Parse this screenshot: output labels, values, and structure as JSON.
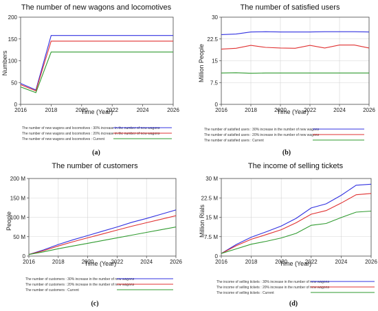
{
  "chart_data": [
    {
      "type": "line",
      "panel_label": "(a)",
      "title": "The number of new wagons and locomotives",
      "xlabel": "Time  (Year)",
      "ylabel": "Numbers",
      "xlim": [
        2016,
        2026
      ],
      "ylim": [
        0,
        200
      ],
      "xticks": [
        2016,
        2018,
        2020,
        2022,
        2024,
        2026
      ],
      "yticks": [
        "0",
        "50",
        "100",
        "150",
        "200"
      ],
      "ytick_values": [
        0,
        50,
        100,
        150,
        200
      ],
      "grid": false,
      "legend_position": "below",
      "x": [
        2016,
        2017,
        2018,
        2019,
        2020,
        2021,
        2022,
        2023,
        2024,
        2025,
        2026
      ],
      "series": [
        {
          "name": "The number of new wagons and locomotives : 30% increase in the number of new wagons",
          "color": "#3030e0",
          "values": [
            48,
            33,
            158,
            158,
            158,
            158,
            158,
            158,
            158,
            158,
            158
          ]
        },
        {
          "name": "The number of new wagons and locomotives : 20% increase in the number of new wagons",
          "color": "#e03030",
          "values": [
            45,
            31,
            145,
            145,
            145,
            145,
            145,
            145,
            145,
            145,
            145
          ]
        },
        {
          "name": "The number of new wagons and locomotives : Current",
          "color": "#2e9a2e",
          "values": [
            40,
            27,
            120,
            120,
            120,
            120,
            120,
            120,
            120,
            120,
            120
          ]
        }
      ]
    },
    {
      "type": "line",
      "panel_label": "(b)",
      "title": "The number of satisfied users",
      "xlabel": "Time  (Year)",
      "ylabel": "Million People",
      "xlim": [
        2016,
        2026
      ],
      "ylim": [
        0,
        30
      ],
      "xticks": [
        2016,
        2018,
        2020,
        2022,
        2024,
        2026
      ],
      "yticks": [
        "0",
        "7.5",
        "15",
        "22.5",
        "30"
      ],
      "ytick_values": [
        0,
        7.5,
        15,
        22.5,
        30
      ],
      "grid": true,
      "legend_position": "below",
      "x": [
        2016,
        2017,
        2018,
        2019,
        2020,
        2021,
        2022,
        2023,
        2024,
        2025,
        2026
      ],
      "series": [
        {
          "name": "The number of satisfied users : 30% increase in the number of new wagons",
          "color": "#3030e0",
          "values": [
            24.0,
            24.2,
            24.9,
            25.0,
            24.9,
            24.9,
            24.9,
            25.0,
            25.0,
            25.0,
            24.9
          ]
        },
        {
          "name": "The number of satisfied users : 20% increase in the number of new wagons",
          "color": "#e03030",
          "values": [
            19.0,
            19.3,
            20.3,
            19.6,
            19.4,
            19.3,
            20.3,
            19.4,
            20.4,
            20.4,
            19.4
          ]
        },
        {
          "name": "The number of satisfied users : Current",
          "color": "#2e9a2e",
          "values": [
            10.8,
            10.9,
            10.7,
            10.8,
            10.8,
            10.8,
            10.8,
            10.8,
            10.8,
            10.8,
            10.8
          ]
        }
      ]
    },
    {
      "type": "line",
      "panel_label": "(c)",
      "title": "The number of customers",
      "xlabel": "Time  (Year)",
      "ylabel": "People",
      "xlim": [
        2016,
        2026
      ],
      "ylim": [
        0,
        200
      ],
      "xticks": [
        2016,
        2018,
        2020,
        2022,
        2024,
        2026
      ],
      "yticks": [
        "0",
        "50 M",
        "100 M",
        "150 M",
        "200 M"
      ],
      "ytick_values": [
        0,
        50,
        100,
        150,
        200
      ],
      "grid": true,
      "legend_position": "below",
      "x": [
        2016,
        2017,
        2018,
        2019,
        2020,
        2021,
        2022,
        2023,
        2024,
        2025,
        2026
      ],
      "series": [
        {
          "name": "The number of customers : 30% increase in the number of new wagons",
          "color": "#3030e0",
          "values": [
            4,
            16,
            30,
            42,
            53,
            64,
            75,
            87,
            97,
            108,
            119
          ]
        },
        {
          "name": "The number of customers : 20% increase in the number of new wagons",
          "color": "#e03030",
          "values": [
            4,
            14,
            26,
            37,
            47,
            57,
            67,
            77,
            86,
            95,
            104
          ]
        },
        {
          "name": "The number of customers : Current",
          "color": "#2e9a2e",
          "values": [
            4,
            11,
            19,
            26,
            33,
            40,
            47,
            54,
            61,
            68,
            75
          ]
        }
      ]
    },
    {
      "type": "line",
      "panel_label": "(d)",
      "title": "The income of selling tickets",
      "xlabel": "Time  (Year)",
      "ylabel": "Million Rials",
      "xlim": [
        2016,
        2026
      ],
      "ylim": [
        0,
        30
      ],
      "xticks": [
        2016,
        2018,
        2020,
        2022,
        2024,
        2026
      ],
      "yticks": [
        "0",
        "7.5 M",
        "15 M",
        "22.5 M",
        "30 M"
      ],
      "ytick_values": [
        0,
        7.5,
        15,
        22.5,
        30
      ],
      "grid": true,
      "legend_position": "below",
      "x": [
        2016,
        2017,
        2018,
        2019,
        2020,
        2021,
        2022,
        2023,
        2024,
        2025,
        2026
      ],
      "series": [
        {
          "name": "The income of selling tickets : 30% increase in the number of new wagons",
          "color": "#3030e0",
          "values": [
            1.0,
            4.5,
            7.3,
            9.4,
            11.6,
            14.6,
            18.6,
            20.2,
            23.5,
            27.4,
            27.8
          ]
        },
        {
          "name": "The income of selling tickets : 20% increase in the number of new wagons",
          "color": "#e03030",
          "values": [
            1.0,
            4.0,
            6.5,
            8.3,
            10.2,
            12.9,
            16.2,
            17.6,
            20.5,
            23.7,
            24.2
          ]
        },
        {
          "name": "The income of selling tickets : Current",
          "color": "#2e9a2e",
          "values": [
            1.0,
            2.8,
            4.6,
            5.7,
            7.0,
            8.8,
            11.9,
            12.6,
            14.9,
            17.0,
            17.4
          ]
        }
      ]
    }
  ]
}
